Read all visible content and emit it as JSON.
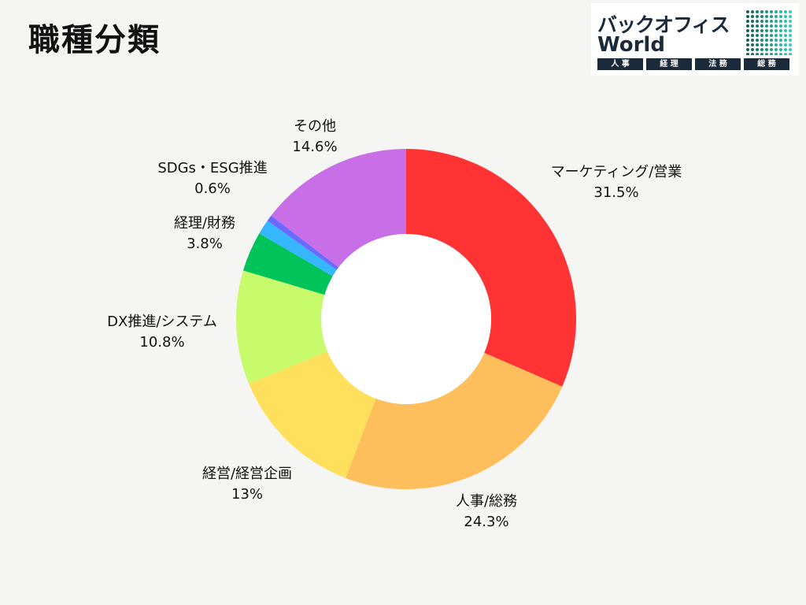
{
  "page": {
    "title": "職種分類"
  },
  "logo": {
    "line1": "バックオフィス",
    "line2": "World",
    "tags": [
      "人 事",
      "経 理",
      "法 務",
      "総 務"
    ]
  },
  "chart_data": {
    "type": "pie",
    "donut": true,
    "title": "",
    "start_angle_deg": 0,
    "direction": "clockwise",
    "slices": [
      {
        "label": "マーケティング/営業",
        "value": 31.5,
        "value_label": "31.5%",
        "color": "#ff3333"
      },
      {
        "label": "人事/総務",
        "value": 24.3,
        "value_label": "24.3%",
        "color": "#ffbe5c"
      },
      {
        "label": "経営/経営企画",
        "value": 13,
        "value_label": "13%",
        "color": "#ffe05c"
      },
      {
        "label": "DX推進/システム",
        "value": 10.8,
        "value_label": "10.8%",
        "color": "#c8fb6c"
      },
      {
        "label": "経理/財務",
        "value": 3.8,
        "value_label": "3.8%",
        "color": "#00c45a"
      },
      {
        "label": "",
        "value": 1.4,
        "value_label": "",
        "color": "#36b6ff"
      },
      {
        "label": "SDGs・ESG推進",
        "value": 0.6,
        "value_label": "0.6%",
        "color": "#6a6aff"
      },
      {
        "label": "その他",
        "value": 14.6,
        "value_label": "14.6%",
        "color": "#c86ee6"
      }
    ]
  }
}
